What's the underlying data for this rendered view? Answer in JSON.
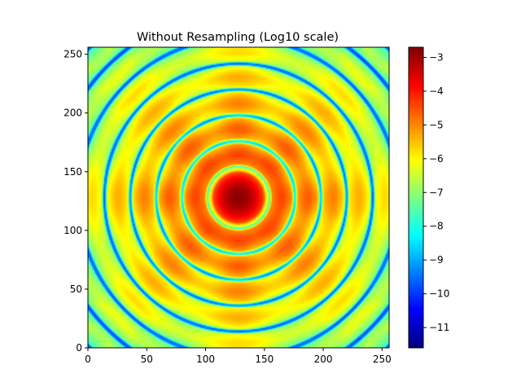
{
  "chart_data": {
    "type": "heatmap",
    "title": "Without Resampling (Log10 scale)",
    "xlabel": "",
    "ylabel": "",
    "xlim": [
      0,
      256
    ],
    "ylim": [
      0,
      256
    ],
    "x_ticks": [
      "0",
      "50",
      "100",
      "150",
      "200",
      "250"
    ],
    "y_ticks": [
      "0",
      "50",
      "100",
      "150",
      "200",
      "250"
    ],
    "x_tick_values": [
      0,
      50,
      100,
      150,
      200,
      250
    ],
    "y_tick_values": [
      0,
      50,
      100,
      150,
      200,
      250
    ],
    "grid": false,
    "colormap": "jet",
    "colorbar": {
      "range": [
        -11.6,
        -2.7
      ],
      "ticks": [
        "−3",
        "−4",
        "−5",
        "−6",
        "−7",
        "−8",
        "−9",
        "−10",
        "−11"
      ],
      "tick_values": [
        -3,
        -4,
        -5,
        -6,
        -7,
        -8,
        -9,
        -10,
        -11
      ]
    },
    "pattern": {
      "description_of_values": "radially symmetric diffraction (Airy-like) pattern",
      "center": [
        128,
        128
      ],
      "peak_value": -2.8,
      "background_value": -6.3,
      "ring_minimum_value": -8.5,
      "first_dark_ring_radius": 26,
      "ring_spacing": 22
    }
  }
}
